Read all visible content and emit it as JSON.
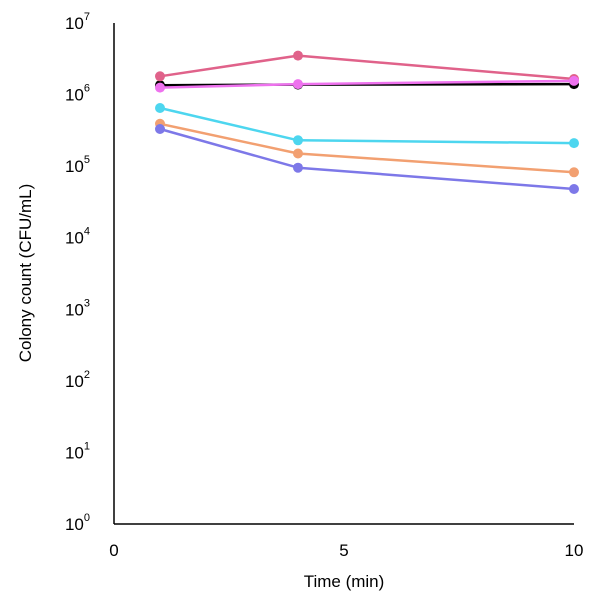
{
  "chart_data": {
    "type": "line",
    "title": "",
    "xlabel": "Time (min)",
    "ylabel": "Colony count (CFU/mL)",
    "x_scale": "linear",
    "y_scale": "log",
    "xlim": [
      0,
      10
    ],
    "ylim": [
      1,
      10000000
    ],
    "x_ticks": [
      {
        "value": 0,
        "label": "0"
      },
      {
        "value": 5,
        "label": "5"
      },
      {
        "value": 10,
        "label": "10"
      }
    ],
    "y_ticks": [
      {
        "value": 1,
        "base": "10",
        "exp": "0"
      },
      {
        "value": 10,
        "base": "10",
        "exp": "1"
      },
      {
        "value": 100,
        "base": "10",
        "exp": "2"
      },
      {
        "value": 1000,
        "base": "10",
        "exp": "3"
      },
      {
        "value": 10000,
        "base": "10",
        "exp": "4"
      },
      {
        "value": 100000,
        "base": "10",
        "exp": "5"
      },
      {
        "value": 1000000,
        "base": "10",
        "exp": "6"
      },
      {
        "value": 10000000,
        "base": "10",
        "exp": "7"
      }
    ],
    "grid": false,
    "legend": "none",
    "x": [
      1,
      4,
      10
    ],
    "series": [
      {
        "color": "#000000",
        "values": [
          1350000,
          1380000,
          1400000
        ]
      },
      {
        "color": "#e0628a",
        "values": [
          1800000,
          3500000,
          1650000
        ]
      },
      {
        "color": "#ee72ee",
        "values": [
          1250000,
          1400000,
          1550000
        ]
      },
      {
        "color": "#4dd6ef",
        "values": [
          650000,
          230000,
          210000
        ]
      },
      {
        "color": "#f2a071",
        "values": [
          390000,
          150000,
          82000
        ]
      },
      {
        "color": "#7d78e8",
        "values": [
          330000,
          95000,
          48000
        ]
      }
    ]
  }
}
